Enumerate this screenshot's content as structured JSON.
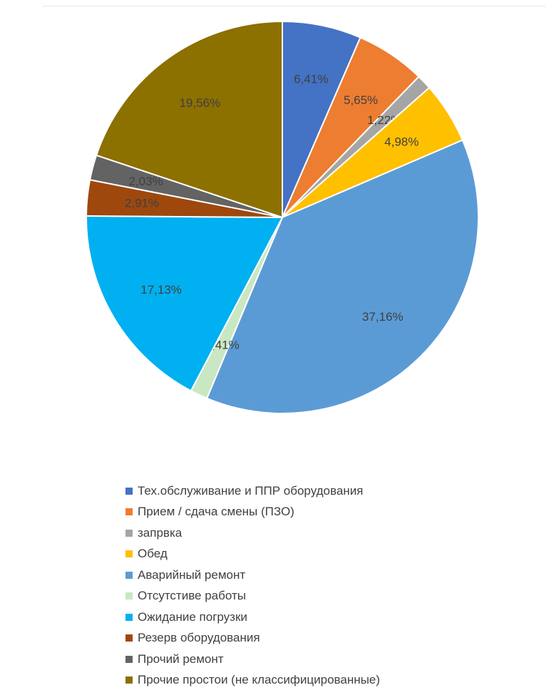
{
  "chart_data": {
    "type": "pie",
    "title": "",
    "legend_position": "bottom",
    "slices": [
      {
        "label": "Тех.обслуживание и ППР оборудования",
        "value": 6.41,
        "value_label": "6,41%",
        "color": "#4472C4"
      },
      {
        "label": "Прием / сдача смены (ПЗО)",
        "value": 5.65,
        "value_label": "5,65%",
        "color": "#ED7D31"
      },
      {
        "label": "запрвка",
        "value": 1.22,
        "value_label": "1,22%",
        "color": "#A5A5A5"
      },
      {
        "label": "Обед",
        "value": 4.98,
        "value_label": "4,98%",
        "color": "#FFC000"
      },
      {
        "label": "Аварийный ремонт",
        "value": 37.16,
        "value_label": "37,16%",
        "color": "#5B9BD5"
      },
      {
        "label": "Отсутстиве работы",
        "value": 1.41,
        "value_label": "1,41%",
        "color": "#C9E7C2"
      },
      {
        "label": "Ожидание погрузки",
        "value": 17.13,
        "value_label": "17,13%",
        "color": "#00B0F0"
      },
      {
        "label": "Резерв оборудования",
        "value": 2.91,
        "value_label": "2,91%",
        "color": "#9E480E"
      },
      {
        "label": "Прочий ремонт",
        "value": 2.03,
        "value_label": "2,03%",
        "color": "#636363"
      },
      {
        "label": "Прочие простои (не классифицированные)",
        "value": 19.56,
        "value_label": "19,56%",
        "color": "#8C7000"
      }
    ]
  }
}
